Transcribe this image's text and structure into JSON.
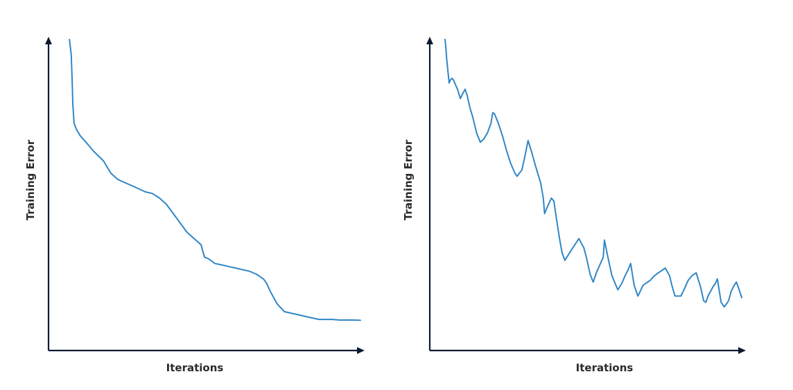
{
  "chart_data": [
    {
      "type": "line",
      "xlabel": "Iterations",
      "ylabel": "Training Error",
      "xlim": [
        0,
        100
      ],
      "ylim": [
        0,
        100
      ],
      "grid": false,
      "series": [
        {
          "color": "#2f86c6",
          "x": [
            6.7,
            7.3,
            7.6,
            7.8,
            8.2,
            9.0,
            10.2,
            12.0,
            14.5,
            17.6,
            20.0,
            22.2,
            24.4,
            26.7,
            28.9,
            31.1,
            33.3,
            35.6,
            37.8,
            40.0,
            42.2,
            44.4,
            48.9,
            50.0,
            51.3,
            53.3,
            55.6,
            57.8,
            60.0,
            62.2,
            64.4,
            66.7,
            68.9,
            70.0,
            71.1,
            73.3,
            75.6,
            77.8,
            80.0,
            82.2,
            84.4,
            86.7,
            88.9,
            91.1,
            93.3,
            95.6,
            97.8,
            100.0
          ],
          "values": [
            100,
            95,
            86,
            79,
            73,
            71,
            69,
            67,
            64,
            61,
            57,
            55,
            54,
            53,
            52,
            51,
            50.5,
            49,
            47,
            44,
            41,
            38,
            34,
            30,
            29.5,
            28,
            27.5,
            27,
            26.5,
            26,
            25.5,
            24.5,
            23,
            21.5,
            19,
            15,
            12.5,
            12,
            11.5,
            11,
            10.5,
            10,
            10,
            10,
            9.8,
            9.8,
            9.8,
            9.7
          ]
        }
      ]
    },
    {
      "type": "line",
      "xlabel": "Iterations",
      "ylabel": "Training Error",
      "xlim": [
        0,
        100
      ],
      "ylim": [
        0,
        100
      ],
      "grid": false,
      "series": [
        {
          "color": "#2f86c6",
          "x": [
            4.9,
            5.1,
            5.4,
            5.8,
            6.2,
            6.6,
            7.1,
            7.6,
            8.0,
            8.9,
            9.8,
            10.5,
            11.3,
            12.0,
            12.9,
            13.8,
            15.0,
            16.2,
            17.3,
            18.5,
            19.6,
            20.2,
            20.8,
            22.0,
            23.3,
            24.7,
            26.0,
            27.3,
            28.0,
            28.7,
            29.5,
            30.4,
            31.5,
            32.6,
            34.0,
            35.5,
            36.4,
            36.8,
            37.4,
            38.3,
            39.0,
            39.8,
            40.5,
            41.5,
            42.4,
            43.3,
            45.5,
            47.8,
            49.4,
            50.3,
            51.4,
            52.4,
            53.4,
            54.5,
            55.6,
            56.0,
            57.0,
            58.4,
            60.3,
            61.5,
            62.6,
            63.6,
            64.4,
            65.5,
            66.7,
            67.2,
            68.4,
            70.6,
            72.0,
            73.3,
            75.5,
            76.9,
            77.6,
            78.6,
            80.5,
            81.7,
            82.8,
            84.0,
            85.4,
            86.8,
            87.8,
            88.5,
            89.2,
            90.0,
            90.8,
            91.5,
            92.2,
            93.4,
            94.4,
            95.8,
            96.6,
            97.6,
            98.3,
            99.2,
            100.0
          ],
          "values": [
            100,
            98,
            94,
            90,
            86,
            87,
            87.5,
            87,
            86,
            84,
            81,
            82.5,
            84,
            82,
            78,
            75,
            70,
            67,
            68,
            70,
            73,
            76.5,
            76,
            73,
            69,
            64,
            60,
            57,
            56,
            57,
            58,
            62,
            67.5,
            64,
            59,
            54,
            49,
            44,
            45.5,
            47.5,
            49,
            48,
            43,
            36.5,
            31.5,
            29,
            32.5,
            36,
            33,
            29.5,
            24.5,
            22,
            25,
            27.5,
            30,
            35.5,
            30.5,
            24,
            19.5,
            21.5,
            24,
            26,
            28,
            21,
            17.5,
            18.5,
            21,
            22.5,
            24,
            25,
            26.5,
            24,
            21,
            17.5,
            17.5,
            20,
            22.5,
            24,
            25,
            20.5,
            16,
            15.5,
            17.5,
            19,
            20.5,
            21.5,
            23,
            15.5,
            14,
            16,
            19,
            21,
            22,
            19.5,
            17
          ]
        }
      ]
    }
  ]
}
